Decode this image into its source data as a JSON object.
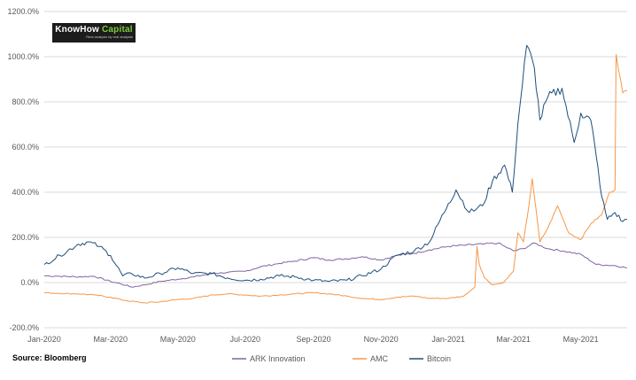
{
  "logo": {
    "name_part1": "KnowHow",
    "name_part2": " Capital",
    "tagline": "Real analysis by real analysts"
  },
  "source": "Source: Bloomberg",
  "colors": {
    "ark": "#8064a2",
    "amc": "#f79646",
    "btc": "#1f4e79",
    "grid": "#d9d9d9",
    "logo_bg": "#1c1c1c",
    "logo_accent": "#7ec93b"
  },
  "chart_data": {
    "type": "line",
    "title": "",
    "xlabel": "",
    "ylabel": "",
    "ylim": [
      -200,
      1200
    ],
    "y_ticks": [
      "-200.0%",
      "0.0%",
      "200.0%",
      "400.0%",
      "600.0%",
      "800.0%",
      "1000.0%",
      "1200.0%"
    ],
    "y_tick_values": [
      -200,
      0,
      200,
      400,
      600,
      800,
      1000,
      1200
    ],
    "x_ticks": [
      "Jan-2020",
      "Mar-2020",
      "May-2020",
      "Jul-2020",
      "Sep-2020",
      "Nov-2020",
      "Jan-2021",
      "Mar-2021",
      "May-2021"
    ],
    "x_tick_dates": [
      "2020-01-01",
      "2020-03-01",
      "2020-05-01",
      "2020-07-01",
      "2020-09-01",
      "2020-11-01",
      "2021-01-01",
      "2021-03-01",
      "2021-05-01"
    ],
    "xlim": [
      "2020-01-01",
      "2021-06-12"
    ],
    "grid": "horizontal",
    "legend_position": "bottom",
    "series": [
      {
        "name": "ARK Innovation",
        "color": "#8064a2",
        "points": [
          [
            "2020-01-01",
            30
          ],
          [
            "2020-01-15",
            28
          ],
          [
            "2020-02-01",
            25
          ],
          [
            "2020-02-15",
            28
          ],
          [
            "2020-03-01",
            5
          ],
          [
            "2020-03-10",
            -5
          ],
          [
            "2020-03-20",
            -20
          ],
          [
            "2020-04-01",
            -10
          ],
          [
            "2020-04-15",
            5
          ],
          [
            "2020-05-01",
            15
          ],
          [
            "2020-05-15",
            25
          ],
          [
            "2020-06-01",
            40
          ],
          [
            "2020-06-15",
            45
          ],
          [
            "2020-07-01",
            50
          ],
          [
            "2020-07-15",
            70
          ],
          [
            "2020-08-01",
            85
          ],
          [
            "2020-08-15",
            95
          ],
          [
            "2020-09-01",
            110
          ],
          [
            "2020-09-15",
            100
          ],
          [
            "2020-10-01",
            105
          ],
          [
            "2020-10-15",
            115
          ],
          [
            "2020-11-01",
            100
          ],
          [
            "2020-11-15",
            120
          ],
          [
            "2020-12-01",
            130
          ],
          [
            "2020-12-15",
            145
          ],
          [
            "2021-01-01",
            160
          ],
          [
            "2021-01-15",
            165
          ],
          [
            "2021-02-01",
            170
          ],
          [
            "2021-02-15",
            175
          ],
          [
            "2021-03-01",
            140
          ],
          [
            "2021-03-10",
            150
          ],
          [
            "2021-03-20",
            175
          ],
          [
            "2021-04-01",
            150
          ],
          [
            "2021-04-15",
            140
          ],
          [
            "2021-05-01",
            125
          ],
          [
            "2021-05-15",
            80
          ],
          [
            "2021-06-01",
            75
          ],
          [
            "2021-06-12",
            65
          ]
        ]
      },
      {
        "name": "AMC",
        "color": "#f79646",
        "points": [
          [
            "2020-01-01",
            -45
          ],
          [
            "2020-01-15",
            -48
          ],
          [
            "2020-02-01",
            -50
          ],
          [
            "2020-02-15",
            -55
          ],
          [
            "2020-03-01",
            -65
          ],
          [
            "2020-03-15",
            -80
          ],
          [
            "2020-04-01",
            -90
          ],
          [
            "2020-04-15",
            -85
          ],
          [
            "2020-05-01",
            -75
          ],
          [
            "2020-05-15",
            -70
          ],
          [
            "2020-06-01",
            -55
          ],
          [
            "2020-06-15",
            -50
          ],
          [
            "2020-07-01",
            -55
          ],
          [
            "2020-07-15",
            -60
          ],
          [
            "2020-08-01",
            -55
          ],
          [
            "2020-08-15",
            -50
          ],
          [
            "2020-09-01",
            -45
          ],
          [
            "2020-09-15",
            -50
          ],
          [
            "2020-10-01",
            -60
          ],
          [
            "2020-10-15",
            -70
          ],
          [
            "2020-11-01",
            -75
          ],
          [
            "2020-11-15",
            -65
          ],
          [
            "2020-12-01",
            -60
          ],
          [
            "2020-12-15",
            -70
          ],
          [
            "2021-01-01",
            -70
          ],
          [
            "2021-01-15",
            -60
          ],
          [
            "2021-01-25",
            -20
          ],
          [
            "2021-01-27",
            160
          ],
          [
            "2021-01-29",
            80
          ],
          [
            "2021-02-03",
            20
          ],
          [
            "2021-02-10",
            -10
          ],
          [
            "2021-02-20",
            0
          ],
          [
            "2021-03-01",
            50
          ],
          [
            "2021-03-05",
            220
          ],
          [
            "2021-03-10",
            180
          ],
          [
            "2021-03-15",
            340
          ],
          [
            "2021-03-18",
            460
          ],
          [
            "2021-03-25",
            180
          ],
          [
            "2021-04-01",
            240
          ],
          [
            "2021-04-10",
            340
          ],
          [
            "2021-04-20",
            220
          ],
          [
            "2021-05-01",
            190
          ],
          [
            "2021-05-10",
            260
          ],
          [
            "2021-05-20",
            300
          ],
          [
            "2021-05-27",
            400
          ],
          [
            "2021-06-01",
            410
          ],
          [
            "2021-06-02",
            1010
          ],
          [
            "2021-06-08",
            840
          ],
          [
            "2021-06-12",
            850
          ]
        ]
      },
      {
        "name": "Bitcoin",
        "color": "#1f4e79",
        "points": [
          [
            "2020-01-01",
            80
          ],
          [
            "2020-01-15",
            120
          ],
          [
            "2020-02-01",
            170
          ],
          [
            "2020-02-10",
            180
          ],
          [
            "2020-02-20",
            160
          ],
          [
            "2020-03-01",
            120
          ],
          [
            "2020-03-12",
            30
          ],
          [
            "2020-03-20",
            40
          ],
          [
            "2020-04-01",
            20
          ],
          [
            "2020-04-15",
            40
          ],
          [
            "2020-05-01",
            65
          ],
          [
            "2020-05-15",
            40
          ],
          [
            "2020-06-01",
            40
          ],
          [
            "2020-06-15",
            20
          ],
          [
            "2020-07-01",
            10
          ],
          [
            "2020-07-15",
            15
          ],
          [
            "2020-08-01",
            30
          ],
          [
            "2020-08-15",
            25
          ],
          [
            "2020-09-01",
            10
          ],
          [
            "2020-09-15",
            5
          ],
          [
            "2020-10-01",
            10
          ],
          [
            "2020-10-15",
            30
          ],
          [
            "2020-11-01",
            60
          ],
          [
            "2020-11-15",
            120
          ],
          [
            "2020-12-01",
            140
          ],
          [
            "2020-12-15",
            180
          ],
          [
            "2021-01-01",
            350
          ],
          [
            "2021-01-08",
            410
          ],
          [
            "2021-01-20",
            310
          ],
          [
            "2021-02-01",
            340
          ],
          [
            "2021-02-10",
            450
          ],
          [
            "2021-02-21",
            520
          ],
          [
            "2021-02-28",
            400
          ],
          [
            "2021-03-05",
            700
          ],
          [
            "2021-03-13",
            1050
          ],
          [
            "2021-03-20",
            950
          ],
          [
            "2021-03-25",
            720
          ],
          [
            "2021-04-01",
            820
          ],
          [
            "2021-04-14",
            860
          ],
          [
            "2021-04-25",
            620
          ],
          [
            "2021-05-01",
            750
          ],
          [
            "2021-05-10",
            720
          ],
          [
            "2021-05-15",
            560
          ],
          [
            "2021-05-20",
            380
          ],
          [
            "2021-05-25",
            280
          ],
          [
            "2021-06-01",
            310
          ],
          [
            "2021-06-08",
            270
          ],
          [
            "2021-06-12",
            280
          ]
        ]
      }
    ]
  }
}
